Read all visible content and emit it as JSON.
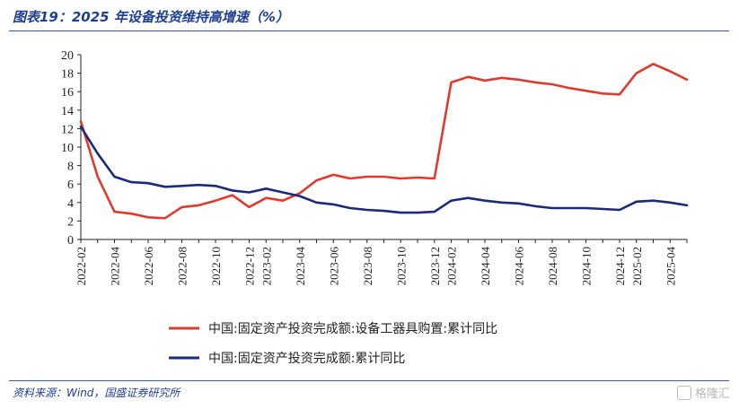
{
  "header": {
    "title": "图表19：2025 年设备投资维持高增速（%）"
  },
  "footer": {
    "source": "资料来源：Wind，国盛证券研究所",
    "watermark": "格隆汇"
  },
  "colors": {
    "series_red": "#e03a2f",
    "series_navy": "#1b2a7a",
    "accent_blue": "#1f3f8f"
  },
  "chart_data": {
    "type": "line",
    "title": "",
    "xlabel": "",
    "ylabel": "",
    "ylim": [
      0,
      20
    ],
    "yticks": [
      0,
      2,
      4,
      6,
      8,
      10,
      12,
      14,
      16,
      18,
      20
    ],
    "grid": false,
    "legend_position": "bottom",
    "x": [
      "2022-02",
      "2022-03",
      "2022-04",
      "2022-05",
      "2022-06",
      "2022-07",
      "2022-08",
      "2022-09",
      "2022-10",
      "2022-11",
      "2022-12",
      "2023-02",
      "2023-03",
      "2023-04",
      "2023-05",
      "2023-06",
      "2023-07",
      "2023-08",
      "2023-09",
      "2023-10",
      "2023-11",
      "2023-12",
      "2024-02",
      "2024-03",
      "2024-04",
      "2024-05",
      "2024-06",
      "2024-07",
      "2024-08",
      "2024-09",
      "2024-10",
      "2024-11",
      "2024-12",
      "2025-02",
      "2025-03",
      "2025-04",
      "2025-05"
    ],
    "xtick_labels": [
      "2022-02",
      "2022-04",
      "2022-06",
      "2022-08",
      "2022-10",
      "2022-12",
      "2023-02",
      "2023-04",
      "2023-06",
      "2023-08",
      "2023-10",
      "2023-12",
      "2024-02",
      "2024-04",
      "2024-06",
      "2024-08",
      "2024-10",
      "2024-12",
      "2025-02",
      "2025-04"
    ],
    "series": [
      {
        "name": "中国:固定资产投资完成额:设备工器具购置:累计同比",
        "color": "#e03a2f",
        "values": [
          12.8,
          6.8,
          3.0,
          2.8,
          2.4,
          2.3,
          3.5,
          3.7,
          4.2,
          4.8,
          3.5,
          4.5,
          4.2,
          5.0,
          6.4,
          7.0,
          6.6,
          6.8,
          6.8,
          6.6,
          6.7,
          6.6,
          17.0,
          17.6,
          17.2,
          17.5,
          17.3,
          17.0,
          16.8,
          16.4,
          16.1,
          15.8,
          15.7,
          18.0,
          19.0,
          18.2,
          17.3
        ]
      },
      {
        "name": "中国:固定资产投资完成额:累计同比",
        "color": "#1b2a7a",
        "values": [
          12.2,
          9.3,
          6.8,
          6.2,
          6.1,
          5.7,
          5.8,
          5.9,
          5.8,
          5.3,
          5.1,
          5.5,
          5.1,
          4.7,
          4.0,
          3.8,
          3.4,
          3.2,
          3.1,
          2.9,
          2.9,
          3.0,
          4.2,
          4.5,
          4.2,
          4.0,
          3.9,
          3.6,
          3.4,
          3.4,
          3.4,
          3.3,
          3.2,
          4.1,
          4.2,
          4.0,
          3.7
        ]
      }
    ]
  }
}
